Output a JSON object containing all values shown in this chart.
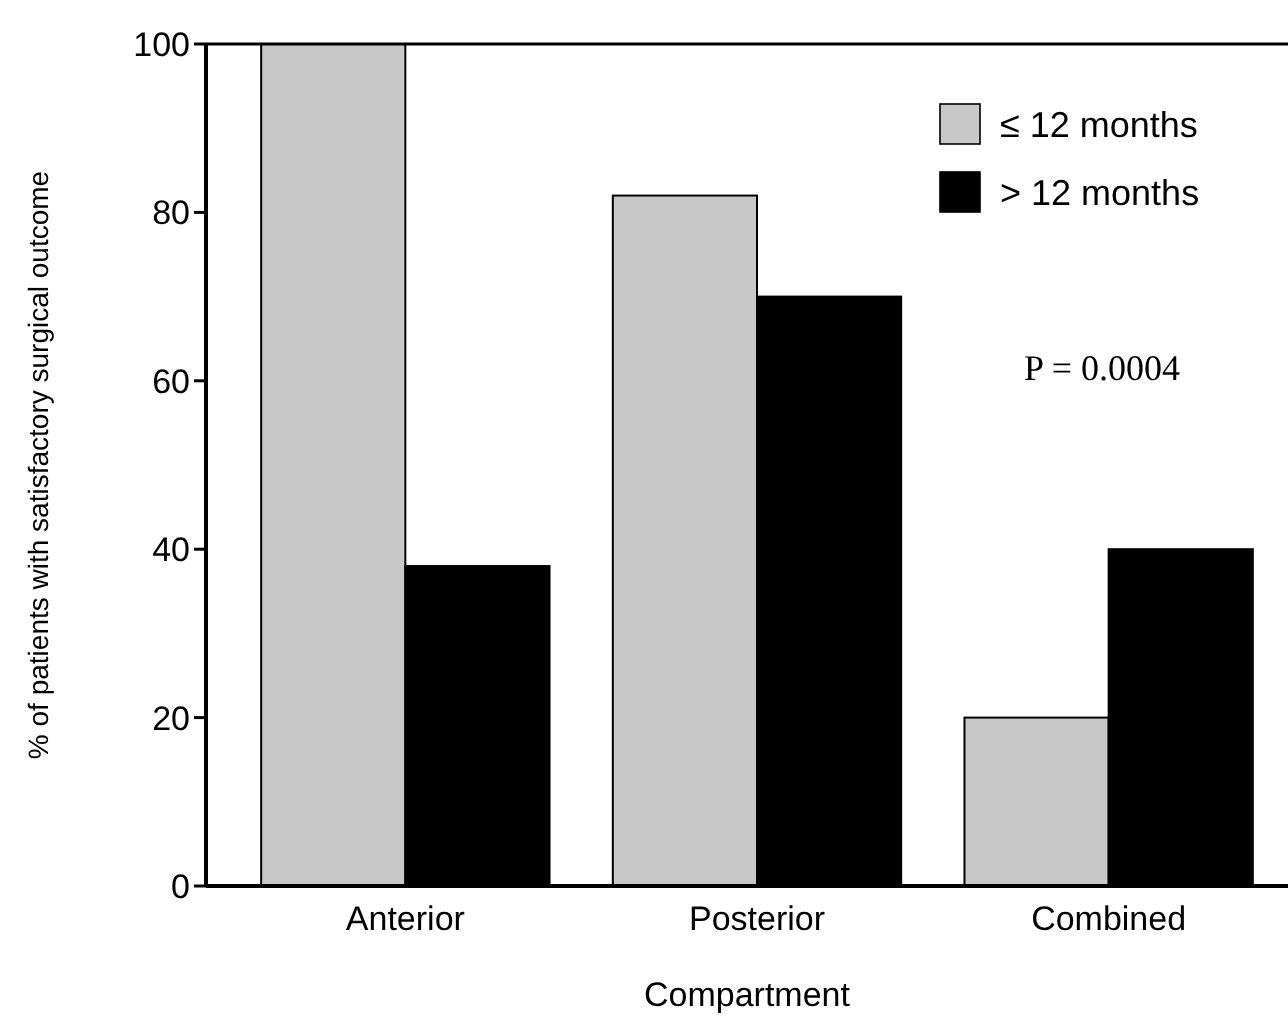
{
  "chart_data": {
    "type": "bar",
    "xlabel": "Compartment",
    "ylabel": "% of patients with satisfactory surgical outcome",
    "categories": [
      "Anterior",
      "Posterior",
      "Combined"
    ],
    "series": [
      {
        "name": "≤ 12 months",
        "color": "#c8c8c8",
        "values": [
          100,
          82,
          20
        ]
      },
      {
        "name": "> 12 months",
        "color": "#000000",
        "values": [
          38,
          70,
          40
        ]
      }
    ],
    "ylim": [
      0,
      100
    ],
    "yticks": [
      0,
      20,
      40,
      60,
      80,
      100
    ],
    "grid": false,
    "legend": "top right",
    "annotations": [
      "P = 0.0004"
    ]
  }
}
